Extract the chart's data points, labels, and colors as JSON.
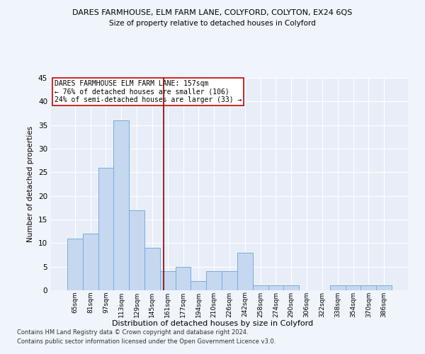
{
  "title1": "DARES FARMHOUSE, ELM FARM LANE, COLYFORD, COLYTON, EX24 6QS",
  "title2": "Size of property relative to detached houses in Colyford",
  "xlabel": "Distribution of detached houses by size in Colyford",
  "ylabel": "Number of detached properties",
  "categories": [
    "65sqm",
    "81sqm",
    "97sqm",
    "113sqm",
    "129sqm",
    "145sqm",
    "161sqm",
    "177sqm",
    "194sqm",
    "210sqm",
    "226sqm",
    "242sqm",
    "258sqm",
    "274sqm",
    "290sqm",
    "306sqm",
    "322sqm",
    "338sqm",
    "354sqm",
    "370sqm",
    "386sqm"
  ],
  "values": [
    11,
    12,
    26,
    36,
    17,
    9,
    4,
    5,
    2,
    4,
    4,
    8,
    1,
    1,
    1,
    0,
    0,
    1,
    1,
    1,
    1
  ],
  "bar_color": "#c5d8f0",
  "bar_edge_color": "#7aabdb",
  "vline_color": "#8b0000",
  "annotation_text": "DARES FARMHOUSE ELM FARM LANE: 157sqm\n← 76% of detached houses are smaller (106)\n24% of semi-detached houses are larger (33) →",
  "annotation_box_color": "white",
  "annotation_box_edge": "#cc0000",
  "ylim": [
    0,
    45
  ],
  "yticks": [
    0,
    5,
    10,
    15,
    20,
    25,
    30,
    35,
    40,
    45
  ],
  "footer1": "Contains HM Land Registry data © Crown copyright and database right 2024.",
  "footer2": "Contains public sector information licensed under the Open Government Licence v3.0.",
  "background_color": "#f0f4fb",
  "plot_bg_color": "#e8eef8"
}
